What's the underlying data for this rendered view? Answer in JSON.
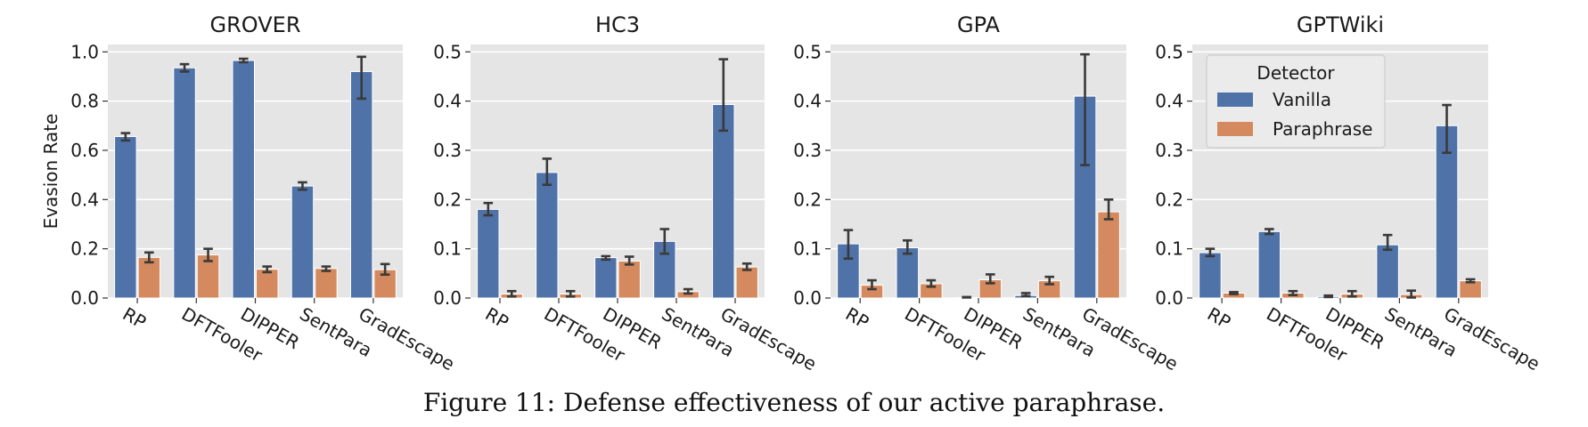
{
  "caption": "Figure 11: Defense effectiveness of our active paraphrase.",
  "colors": {
    "vanilla": "#4f72a8",
    "paraphrase": "#d48a5e",
    "panel_bg": "#e5e5e5",
    "grid": "#ffffff",
    "errorbar": "#3a3a3a"
  },
  "chart_data": [
    {
      "type": "bar",
      "title": "GROVER",
      "ylabel": "Evasion Rate",
      "xlabel": "",
      "ylim": [
        0,
        1.03
      ],
      "yticks": [
        "0.0",
        "0.2",
        "0.4",
        "0.6",
        "0.8",
        "1.0"
      ],
      "categories": [
        "RP",
        "DFTFooler",
        "DIPPER",
        "SentPara",
        "GradEscape"
      ],
      "series": [
        {
          "name": "Vanilla",
          "values": [
            0.656,
            0.935,
            0.965,
            0.455,
            0.92
          ],
          "err_low": [
            0.64,
            0.92,
            0.958,
            0.44,
            0.81
          ],
          "err_high": [
            0.67,
            0.95,
            0.972,
            0.47,
            0.98
          ]
        },
        {
          "name": "Paraphrase",
          "values": [
            0.165,
            0.175,
            0.117,
            0.12,
            0.115
          ],
          "err_low": [
            0.145,
            0.15,
            0.105,
            0.11,
            0.095
          ],
          "err_high": [
            0.185,
            0.2,
            0.128,
            0.128,
            0.138
          ]
        }
      ]
    },
    {
      "type": "bar",
      "title": "HC3",
      "ylabel": "",
      "xlabel": "",
      "ylim": [
        0,
        0.515
      ],
      "yticks": [
        "0.0",
        "0.1",
        "0.2",
        "0.3",
        "0.4",
        "0.5"
      ],
      "categories": [
        "RP",
        "DFTFooler",
        "DIPPER",
        "SentPara",
        "GradEscape"
      ],
      "series": [
        {
          "name": "Vanilla",
          "values": [
            0.18,
            0.255,
            0.082,
            0.115,
            0.393
          ],
          "err_low": [
            0.168,
            0.23,
            0.078,
            0.09,
            0.34
          ],
          "err_high": [
            0.193,
            0.283,
            0.085,
            0.14,
            0.485
          ]
        },
        {
          "name": "Paraphrase",
          "values": [
            0.008,
            0.008,
            0.075,
            0.013,
            0.063
          ],
          "err_low": [
            0.003,
            0.003,
            0.068,
            0.009,
            0.057
          ],
          "err_high": [
            0.014,
            0.014,
            0.084,
            0.018,
            0.07
          ]
        }
      ]
    },
    {
      "type": "bar",
      "title": "GPA",
      "ylabel": "",
      "xlabel": "",
      "ylim": [
        0,
        0.515
      ],
      "yticks": [
        "0.0",
        "0.1",
        "0.2",
        "0.3",
        "0.4",
        "0.5"
      ],
      "categories": [
        "RP",
        "DFTFooler",
        "DIPPER",
        "SentPara",
        "GradEscape"
      ],
      "series": [
        {
          "name": "Vanilla",
          "values": [
            0.11,
            0.102,
            0.001,
            0.005,
            0.41
          ],
          "err_low": [
            0.08,
            0.09,
            0.001,
            0.004,
            0.27
          ],
          "err_high": [
            0.138,
            0.117,
            0.002,
            0.01,
            0.495
          ]
        },
        {
          "name": "Paraphrase",
          "values": [
            0.026,
            0.029,
            0.037,
            0.035,
            0.175
          ],
          "err_low": [
            0.018,
            0.023,
            0.03,
            0.028,
            0.16
          ],
          "err_high": [
            0.036,
            0.036,
            0.048,
            0.043,
            0.2
          ]
        }
      ]
    },
    {
      "type": "bar",
      "title": "GPTWiki",
      "ylabel": "",
      "xlabel": "",
      "ylim": [
        0,
        0.515
      ],
      "yticks": [
        "0.0",
        "0.1",
        "0.2",
        "0.3",
        "0.4",
        "0.5"
      ],
      "categories": [
        "RP",
        "DFTFooler",
        "DIPPER",
        "SentPara",
        "GradEscape"
      ],
      "series": [
        {
          "name": "Vanilla",
          "values": [
            0.092,
            0.135,
            0.003,
            0.108,
            0.35
          ],
          "err_low": [
            0.085,
            0.13,
            0.002,
            0.098,
            0.295
          ],
          "err_high": [
            0.1,
            0.14,
            0.005,
            0.128,
            0.392
          ]
        },
        {
          "name": "Paraphrase",
          "values": [
            0.01,
            0.01,
            0.008,
            0.007,
            0.035
          ],
          "err_low": [
            0.008,
            0.006,
            0.003,
            0.001,
            0.032
          ],
          "err_high": [
            0.012,
            0.014,
            0.014,
            0.015,
            0.038
          ]
        }
      ],
      "legend": {
        "title": "Detector",
        "entries": [
          "Vanilla",
          "Paraphrase"
        ],
        "placement": "top-left"
      }
    }
  ]
}
